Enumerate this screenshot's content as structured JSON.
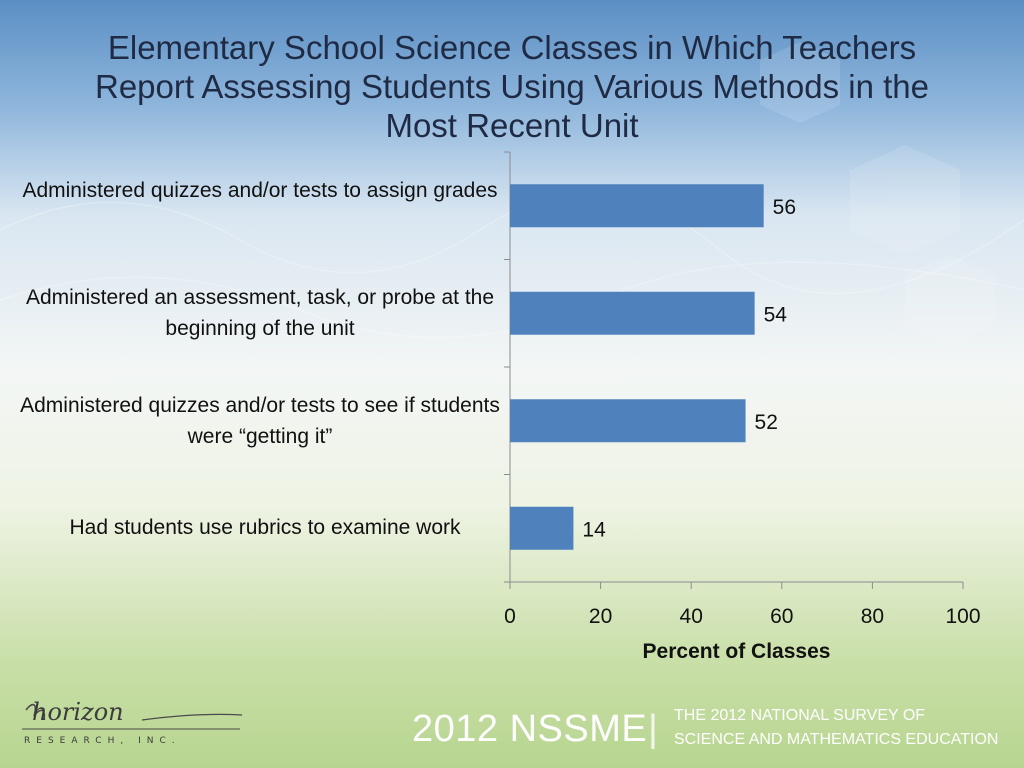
{
  "slide": {
    "title": "Elementary School Science Classes in Which Teachers Report Assessing Students Using Various Methods in the Most Recent Unit"
  },
  "chart_data": {
    "type": "bar",
    "orientation": "horizontal",
    "categories": [
      "Administered quizzes and/or tests to assign grades",
      "Administered an assessment, task, or probe at the beginning of the unit",
      "Administered quizzes and/or tests to see if students were “getting it”",
      "Had students use rubrics to examine work"
    ],
    "values": [
      56,
      54,
      52,
      14
    ],
    "xlabel": "Percent of Classes",
    "xlim": [
      0,
      100
    ],
    "xticks": [
      0,
      20,
      40,
      60,
      80,
      100
    ],
    "bar_color": "#4f81bd",
    "grid": false,
    "legend": "none",
    "data_labels": true
  },
  "footer": {
    "logo_text": "horizon",
    "logo_subtext": "RESEARCH, INC.",
    "year_label": "2012 NSSME",
    "separator": "|",
    "survey_line1": "THE 2012 NATIONAL SURVEY OF",
    "survey_line2": "SCIENCE AND MATHEMATICS EDUCATION"
  }
}
